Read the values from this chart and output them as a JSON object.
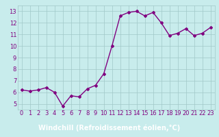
{
  "x": [
    0,
    1,
    2,
    3,
    4,
    5,
    6,
    7,
    8,
    9,
    10,
    11,
    12,
    13,
    14,
    15,
    16,
    17,
    18,
    19,
    20,
    21,
    22,
    23
  ],
  "y": [
    6.2,
    6.1,
    6.2,
    6.4,
    6.0,
    4.8,
    5.7,
    5.6,
    6.3,
    6.6,
    7.6,
    10.0,
    12.6,
    12.9,
    13.0,
    12.6,
    12.9,
    12.0,
    10.9,
    11.1,
    11.5,
    10.9,
    11.1,
    11.6
  ],
  "line_color": "#800080",
  "marker": "D",
  "marker_size": 2,
  "line_width": 1.0,
  "bg_color": "#c8ecec",
  "plot_bg_color": "#c8ecec",
  "grid_color": "#a0c8c8",
  "xlabel": "Windchill (Refroidissement éolien,°C)",
  "xlabel_color": "#ffffff",
  "xlabel_bg": "#800080",
  "yticks": [
    5,
    6,
    7,
    8,
    9,
    10,
    11,
    12,
    13
  ],
  "xtick_labels": [
    "0",
    "1",
    "2",
    "3",
    "4",
    "5",
    "6",
    "7",
    "8",
    "9",
    "10",
    "11",
    "12",
    "13",
    "14",
    "15",
    "16",
    "17",
    "18",
    "19",
    "20",
    "21",
    "22",
    "23"
  ],
  "xlim": [
    -0.5,
    23.5
  ],
  "ylim": [
    4.5,
    13.5
  ],
  "tick_color": "#800080",
  "tick_labelsize": 6,
  "label_fontsize": 7,
  "label_bar_height": 0.13
}
